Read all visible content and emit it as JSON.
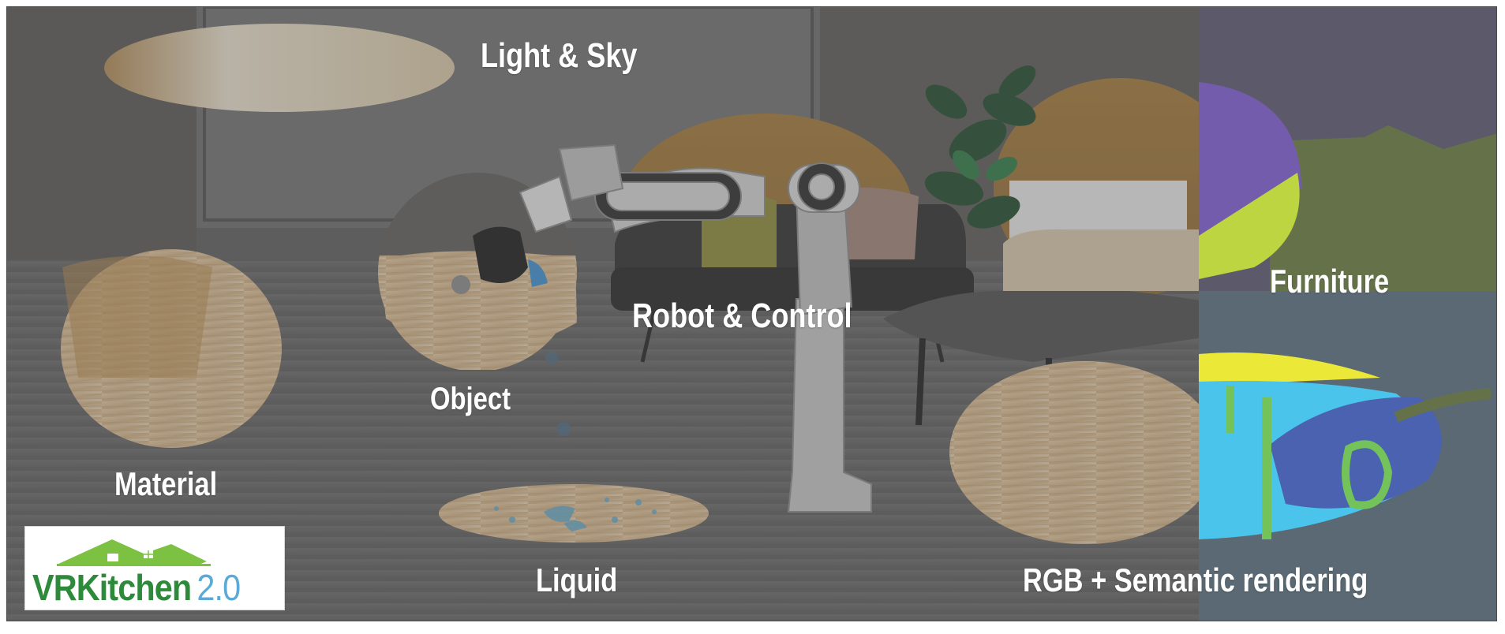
{
  "labels": {
    "light_sky": "Light & Sky",
    "object": "Object",
    "robot_control": "Robot & Control",
    "furniture": "Furniture",
    "material": "Material",
    "liquid": "Liquid",
    "rgb_semantic": "RGB + Semantic rendering"
  },
  "logo": {
    "name": "VRKitchen",
    "version": "2.0",
    "icon": "house-roof-icon"
  },
  "colors": {
    "overlay": "#5e5e5e",
    "wood": "#d9b98f",
    "semantic_purple": "#6b52a6",
    "semantic_lime": "#b9d336",
    "semantic_yellow": "#eae72b",
    "semantic_cyan": "#3fc1ea",
    "semantic_blue": "#3f59ac",
    "semantic_green": "#6bbf50",
    "semantic_olive": "#5c6a3e",
    "logo_green": "#2d8a3a",
    "logo_blue": "#5aa9d6"
  }
}
